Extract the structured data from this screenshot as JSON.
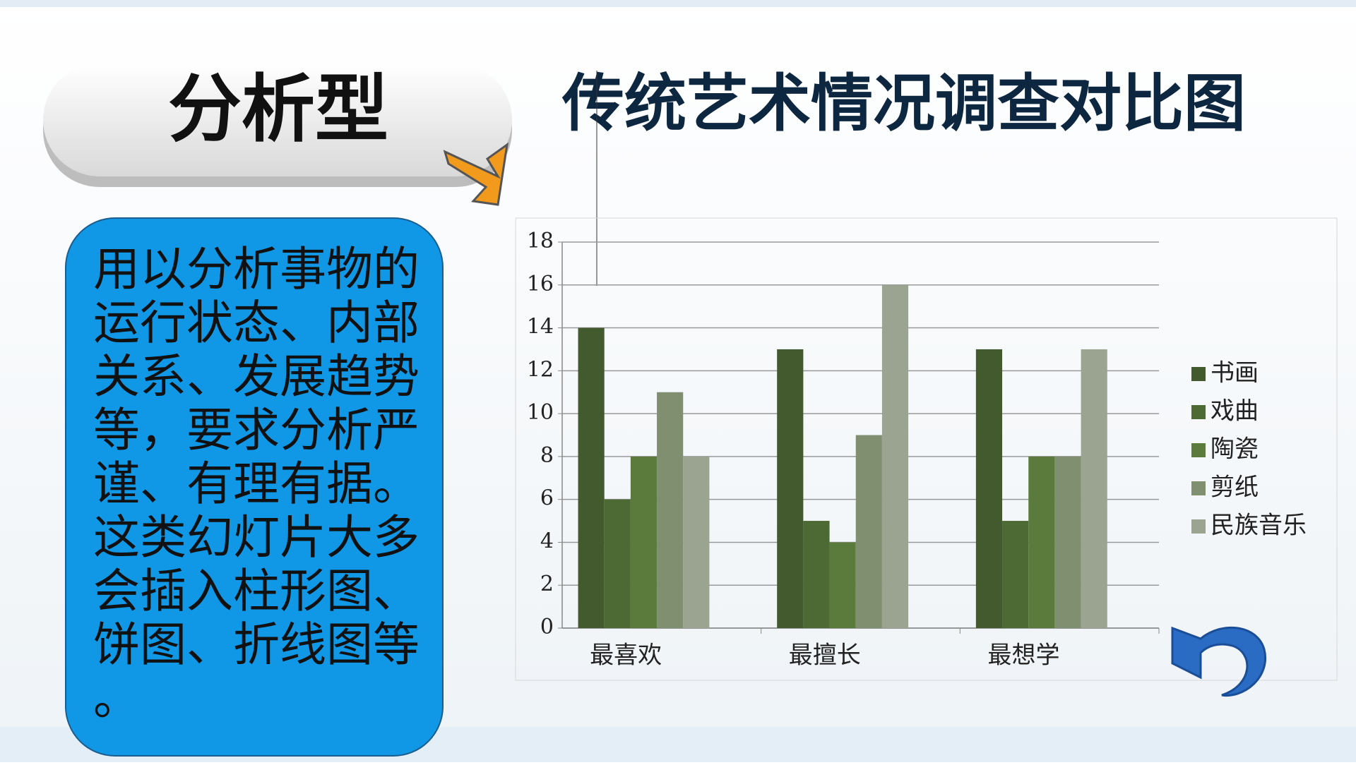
{
  "slide": {
    "label": "分析型",
    "description_lines": [
      "用以分析事物的",
      "运行状态、内部",
      "关系、发展趋势",
      "等，要求分析严",
      "谨、有理有据。",
      "这类幻灯片大多",
      "会插入柱形图、",
      "饼图、折线图等",
      "。"
    ]
  },
  "chart_data": {
    "type": "bar",
    "title": "传统艺术情况调查对比图",
    "categories": [
      "最喜欢",
      "最擅长",
      "最想学"
    ],
    "series": [
      {
        "name": "书画",
        "color": "#435a2e",
        "values": [
          14,
          13,
          13
        ]
      },
      {
        "name": "戏曲",
        "color": "#4e6a34",
        "values": [
          6,
          5,
          5
        ]
      },
      {
        "name": "陶瓷",
        "color": "#5b7b3d",
        "values": [
          8,
          4,
          8
        ]
      },
      {
        "name": "剪纸",
        "color": "#808f70",
        "values": [
          11,
          9,
          8
        ]
      },
      {
        "name": "民族音乐",
        "color": "#9ba391",
        "values": [
          8,
          16,
          13
        ]
      }
    ],
    "ylim": [
      0,
      18
    ],
    "yticks": [
      0,
      2,
      4,
      6,
      8,
      10,
      12,
      14,
      16,
      18
    ],
    "grid": true,
    "legend": "right"
  }
}
